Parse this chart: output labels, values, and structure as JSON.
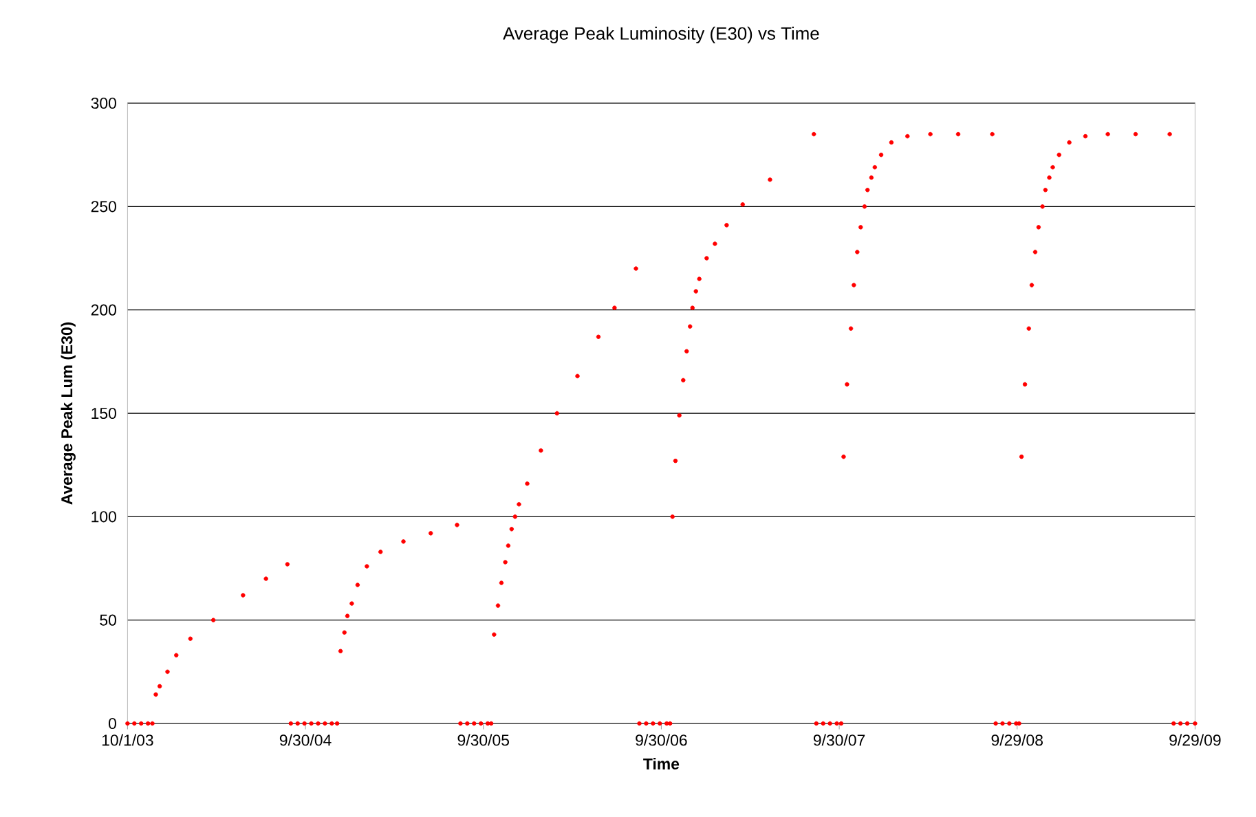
{
  "chart_data": {
    "type": "scatter",
    "title": "Average Peak Luminosity (E30) vs Time",
    "xlabel": "Time",
    "ylabel": "Average Peak Lum (E30)",
    "xlim": [
      "2003-10-01",
      "2009-09-29"
    ],
    "xticks": [
      {
        "value": "2003-10-01",
        "label": "10/1/03"
      },
      {
        "value": "2004-09-30",
        "label": "9/30/04"
      },
      {
        "value": "2005-09-30",
        "label": "9/30/05"
      },
      {
        "value": "2006-09-30",
        "label": "9/30/06"
      },
      {
        "value": "2007-09-30",
        "label": "9/30/07"
      },
      {
        "value": "2008-09-29",
        "label": "9/29/08"
      },
      {
        "value": "2009-09-29",
        "label": "9/29/09"
      }
    ],
    "ylim": [
      0,
      300
    ],
    "yticks": [
      0,
      50,
      100,
      150,
      200,
      250,
      300
    ],
    "grid": "y",
    "marker": "circle",
    "series": [
      {
        "color": "#ff0000",
        "x": [
          "2003-10-01",
          "2003-10-15",
          "2003-10-29",
          "2003-11-12",
          "2003-11-21",
          "2003-11-28",
          "2003-12-06",
          "2003-12-22",
          "2004-01-09",
          "2004-02-07",
          "2004-03-25",
          "2004-05-25",
          "2004-07-11",
          "2004-08-24",
          "2004-08-31",
          "2004-09-14",
          "2004-09-28",
          "2004-10-12",
          "2004-10-26",
          "2004-11-09",
          "2004-11-23",
          "2004-12-04",
          "2004-12-11",
          "2004-12-19",
          "2004-12-25",
          "2005-01-03",
          "2005-01-15",
          "2005-02-03",
          "2005-03-03",
          "2005-04-19",
          "2005-06-14",
          "2005-08-07",
          "2005-08-14",
          "2005-08-28",
          "2005-09-11",
          "2005-09-25",
          "2005-10-09",
          "2005-10-16",
          "2005-10-22",
          "2005-10-30",
          "2005-11-06",
          "2005-11-14",
          "2005-11-20",
          "2005-11-27",
          "2005-12-04",
          "2005-12-12",
          "2005-12-29",
          "2006-01-26",
          "2006-02-28",
          "2006-04-11",
          "2006-05-24",
          "2006-06-26",
          "2006-08-09",
          "2006-08-16",
          "2006-08-30",
          "2006-09-13",
          "2006-09-27",
          "2006-10-11",
          "2006-10-18",
          "2006-10-23",
          "2006-10-29",
          "2006-11-06",
          "2006-11-14",
          "2006-11-21",
          "2006-11-28",
          "2006-12-03",
          "2006-12-10",
          "2006-12-17",
          "2007-01-01",
          "2007-01-18",
          "2007-02-11",
          "2007-03-16",
          "2007-05-11",
          "2007-08-09",
          "2007-08-14",
          "2007-08-28",
          "2007-09-11",
          "2007-09-25",
          "2007-10-04",
          "2007-10-09",
          "2007-10-16",
          "2007-10-24",
          "2007-10-30",
          "2007-11-06",
          "2007-11-13",
          "2007-11-21",
          "2007-11-27",
          "2007-12-05",
          "2007-12-12",
          "2007-12-25",
          "2008-01-15",
          "2008-02-17",
          "2008-04-04",
          "2008-05-31",
          "2008-08-09",
          "2008-08-16",
          "2008-08-30",
          "2008-09-13",
          "2008-09-27",
          "2008-10-03",
          "2008-10-08",
          "2008-10-15",
          "2008-10-23",
          "2008-10-29",
          "2008-11-05",
          "2008-11-12",
          "2008-11-20",
          "2008-11-26",
          "2008-12-04",
          "2008-12-11",
          "2008-12-24",
          "2009-01-14",
          "2009-02-16",
          "2009-04-03",
          "2009-05-30",
          "2009-08-08",
          "2009-08-16",
          "2009-08-30",
          "2009-09-13",
          "2009-09-29"
        ],
        "values": [
          0,
          0,
          0,
          0,
          0,
          14,
          18,
          25,
          33,
          41,
          50,
          62,
          70,
          77,
          0,
          0,
          0,
          0,
          0,
          0,
          0,
          0,
          35,
          44,
          52,
          58,
          67,
          76,
          83,
          88,
          92,
          96,
          0,
          0,
          0,
          0,
          0,
          0,
          43,
          57,
          68,
          78,
          86,
          94,
          100,
          106,
          116,
          132,
          150,
          168,
          187,
          201,
          220,
          0,
          0,
          0,
          0,
          0,
          0,
          100,
          127,
          149,
          166,
          180,
          192,
          201,
          209,
          215,
          225,
          232,
          241,
          251,
          263,
          285,
          0,
          0,
          0,
          0,
          0,
          129,
          164,
          191,
          212,
          228,
          240,
          250,
          258,
          264,
          269,
          275,
          281,
          284,
          285,
          285,
          285,
          0,
          0,
          0,
          0,
          0,
          129,
          164,
          191,
          212,
          228,
          240,
          250,
          258,
          264,
          269,
          275,
          281,
          284,
          285,
          285,
          285,
          0,
          0,
          0,
          0
        ]
      }
    ]
  }
}
